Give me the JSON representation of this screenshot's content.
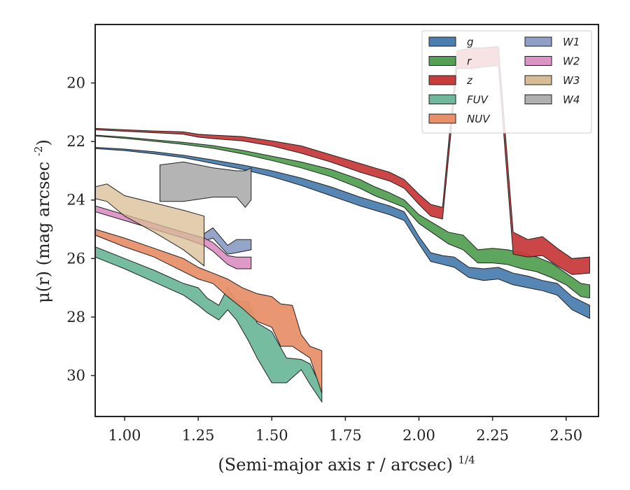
{
  "chart_data": {
    "type": "area",
    "xlabel": "(Semi-major axis r / arcsec)^1/4",
    "ylabel": "μ(r) (mag arcsec^-2)",
    "xlim": [
      0.9,
      2.61
    ],
    "ylim": [
      31.4,
      18.0
    ],
    "y_inverted": true,
    "x_ticks": [
      "1.00",
      "1.25",
      "1.50",
      "1.75",
      "2.00",
      "2.25",
      "2.50"
    ],
    "x_tick_values": [
      1.0,
      1.25,
      1.5,
      1.75,
      2.0,
      2.25,
      2.5
    ],
    "y_ticks": [
      "20",
      "22",
      "24",
      "26",
      "28",
      "30"
    ],
    "y_tick_values": [
      20,
      22,
      24,
      26,
      28,
      30
    ],
    "grid": false,
    "legend_position": "top-right",
    "legend": [
      {
        "label": "g",
        "color": "#4c7fb0"
      },
      {
        "label": "r",
        "color": "#55a055"
      },
      {
        "label": "z",
        "color": "#c83c3c"
      },
      {
        "label": "FUV",
        "color": "#6fb89c"
      },
      {
        "label": "NUV",
        "color": "#e8906a"
      },
      {
        "label": "W1",
        "color": "#8f9fc6"
      },
      {
        "label": "W2",
        "color": "#dc94c6"
      },
      {
        "label": "W3",
        "color": "#d8bc94"
      },
      {
        "label": "W4",
        "color": "#b0b0b0"
      }
    ],
    "series": [
      {
        "key": "g",
        "color": "#4c7fb0",
        "x": [
          0.9,
          1.0,
          1.1,
          1.2,
          1.3,
          1.4,
          1.5,
          1.6,
          1.7,
          1.8,
          1.85,
          1.9,
          1.95,
          2.0,
          2.04,
          2.08,
          2.12,
          2.17,
          2.22,
          2.27,
          2.32,
          2.37,
          2.42,
          2.47,
          2.52,
          2.58
        ],
        "lower": [
          22.2,
          22.26,
          22.35,
          22.47,
          22.63,
          22.8,
          23.0,
          23.25,
          23.55,
          23.9,
          24.05,
          24.2,
          24.4,
          25.25,
          25.8,
          25.9,
          25.95,
          26.3,
          26.35,
          26.3,
          26.5,
          26.6,
          26.75,
          26.85,
          27.3,
          27.6
        ],
        "upper": [
          22.24,
          22.31,
          22.42,
          22.55,
          22.75,
          22.95,
          23.2,
          23.5,
          23.85,
          24.2,
          24.35,
          24.5,
          24.7,
          25.5,
          26.1,
          26.2,
          26.3,
          26.65,
          26.75,
          26.7,
          26.9,
          27.0,
          27.1,
          27.25,
          27.75,
          28.05
        ]
      },
      {
        "key": "r",
        "color": "#55a055",
        "x": [
          0.9,
          1.0,
          1.1,
          1.2,
          1.3,
          1.4,
          1.5,
          1.6,
          1.7,
          1.8,
          1.85,
          1.9,
          1.95,
          2.0,
          2.05,
          2.1,
          2.15,
          2.2,
          2.25,
          2.3,
          2.35,
          2.4,
          2.45,
          2.5,
          2.55,
          2.58
        ],
        "lower": [
          21.78,
          21.85,
          21.94,
          22.03,
          22.14,
          22.3,
          22.5,
          22.7,
          22.95,
          23.3,
          23.55,
          23.75,
          24.0,
          24.5,
          24.8,
          25.1,
          25.2,
          25.7,
          25.65,
          25.7,
          25.8,
          25.95,
          26.15,
          26.5,
          26.85,
          26.9
        ],
        "upper": [
          21.81,
          21.89,
          21.99,
          22.1,
          22.23,
          22.42,
          22.65,
          22.9,
          23.2,
          23.6,
          23.85,
          24.05,
          24.25,
          24.8,
          25.15,
          25.5,
          25.7,
          26.15,
          26.15,
          26.2,
          26.35,
          26.45,
          26.65,
          26.9,
          27.3,
          27.35
        ]
      },
      {
        "key": "z",
        "color": "#c83c3c",
        "x": [
          0.9,
          1.0,
          1.1,
          1.2,
          1.25,
          1.3,
          1.4,
          1.5,
          1.6,
          1.7,
          1.8,
          1.85,
          1.9,
          1.95,
          2.0,
          2.04,
          2.08,
          2.13,
          2.18,
          2.22,
          2.27,
          2.32,
          2.37,
          2.42,
          2.47,
          2.52,
          2.58
        ],
        "lower": [
          21.55,
          21.6,
          21.64,
          21.67,
          21.75,
          21.78,
          21.83,
          21.98,
          22.15,
          22.45,
          22.75,
          22.9,
          23.05,
          23.3,
          23.8,
          24.15,
          24.25,
          18.9,
          18.8,
          18.8,
          18.75,
          25.1,
          25.35,
          25.25,
          25.65,
          26.0,
          25.95
        ],
        "upper": [
          21.6,
          21.65,
          21.7,
          21.75,
          21.85,
          21.9,
          21.98,
          22.15,
          22.4,
          22.7,
          23.05,
          23.2,
          23.35,
          23.6,
          24.15,
          24.55,
          24.65,
          19.5,
          19.5,
          19.45,
          19.4,
          25.85,
          25.95,
          25.9,
          26.25,
          26.55,
          26.5
        ]
      },
      {
        "key": "FUV",
        "color": "#6fb89c",
        "x": [
          0.9,
          1.0,
          1.1,
          1.2,
          1.25,
          1.28,
          1.32,
          1.35,
          1.38,
          1.42,
          1.45,
          1.5,
          1.55,
          1.6,
          1.63,
          1.67
        ],
        "lower": [
          25.6,
          26.0,
          26.4,
          26.85,
          27.0,
          27.35,
          27.6,
          27.0,
          27.45,
          27.5,
          28.2,
          28.5,
          29.4,
          29.45,
          29.6,
          30.45
        ],
        "upper": [
          25.95,
          26.35,
          26.8,
          27.25,
          27.6,
          27.85,
          28.1,
          27.75,
          28.1,
          28.8,
          29.4,
          30.25,
          30.25,
          29.8,
          30.3,
          30.9
        ]
      },
      {
        "key": "NUV",
        "color": "#e8906a",
        "x": [
          0.9,
          1.0,
          1.1,
          1.2,
          1.25,
          1.3,
          1.35,
          1.4,
          1.45,
          1.5,
          1.53,
          1.57,
          1.6,
          1.63,
          1.67
        ],
        "lower": [
          25.0,
          25.3,
          25.65,
          26.0,
          26.3,
          26.5,
          26.7,
          27.0,
          27.2,
          27.3,
          27.55,
          27.6,
          28.6,
          29.0,
          29.15
        ],
        "upper": [
          25.2,
          25.6,
          25.95,
          26.45,
          26.7,
          26.85,
          27.3,
          27.7,
          28.15,
          28.35,
          29.0,
          29.0,
          29.2,
          29.4,
          30.6
        ]
      },
      {
        "key": "W1",
        "color": "#8f9fc6",
        "x": [
          1.27,
          1.3,
          1.35,
          1.38,
          1.43
        ],
        "lower": [
          25.15,
          24.95,
          25.55,
          25.35,
          25.35
        ],
        "upper": [
          25.4,
          25.3,
          25.85,
          25.8,
          25.7
        ]
      },
      {
        "key": "W2",
        "color": "#dc94c6",
        "x": [
          0.9,
          1.0,
          1.1,
          1.2,
          1.27,
          1.3,
          1.35,
          1.38,
          1.43
        ],
        "lower": [
          24.2,
          24.5,
          24.8,
          25.1,
          25.3,
          25.45,
          25.9,
          25.95,
          25.95
        ],
        "upper": [
          24.4,
          24.7,
          25.0,
          25.3,
          25.55,
          25.75,
          26.2,
          26.35,
          26.35
        ]
      },
      {
        "key": "W3",
        "color": "#d8bc94",
        "x": [
          0.9,
          0.94,
          1.0,
          1.1,
          1.2,
          1.27
        ],
        "lower": [
          23.55,
          23.45,
          23.85,
          24.1,
          24.35,
          24.55
        ],
        "upper": [
          23.95,
          24.05,
          24.55,
          25.1,
          25.7,
          26.25
        ]
      },
      {
        "key": "W4",
        "color": "#b0b0b0",
        "x": [
          1.12,
          1.2,
          1.3,
          1.38,
          1.41,
          1.43
        ],
        "lower": [
          22.8,
          22.7,
          22.9,
          23.0,
          23.0,
          22.9
        ],
        "upper": [
          24.05,
          24.05,
          23.9,
          23.9,
          24.25,
          24.0
        ]
      }
    ]
  }
}
